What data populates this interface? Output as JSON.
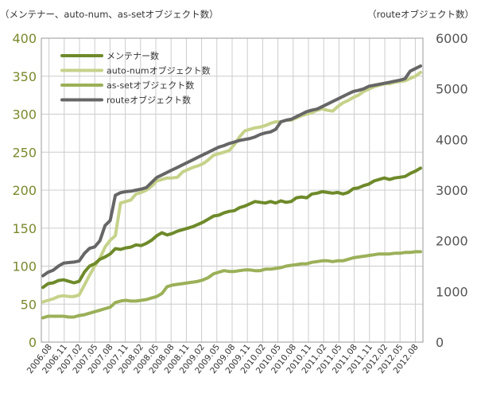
{
  "chart_data": {
    "type": "line",
    "left_axis_title": "（メンテナー、auto-num、as-setオブジェクト数）",
    "right_axis_title": "（routeオブジェクト数）",
    "left_ylim": [
      0,
      400
    ],
    "right_ylim": [
      0,
      6000
    ],
    "left_ticks": [
      "0",
      "50",
      "100",
      "150",
      "200",
      "250",
      "300",
      "350",
      "400"
    ],
    "right_ticks": [
      "0",
      "1000",
      "2000",
      "3000",
      "4000",
      "5000",
      "6000"
    ],
    "x_ticks": [
      "2006.08",
      "2006.11",
      "2007.02",
      "2007.05",
      "2007.08",
      "2007.11",
      "2008.02",
      "2008.05",
      "2008.08",
      "2008.11",
      "2009.02",
      "2009.05",
      "2009.08",
      "2009.11",
      "2010.02",
      "2010.05",
      "2010.08",
      "2010.11",
      "2011.02",
      "2011.05",
      "2011.08",
      "2011.11",
      "2012.02",
      "2012.05",
      "2012.08"
    ],
    "grid": true,
    "legend_position": "top-left",
    "series": [
      {
        "name": "メンテナー数",
        "axis": "left",
        "color": "#6e8a2a",
        "values": [
          72,
          77,
          78,
          81,
          82,
          80,
          78,
          80,
          92,
          100,
          103,
          109,
          112,
          116,
          123,
          122,
          124,
          125,
          128,
          127,
          130,
          134,
          140,
          144,
          141,
          143,
          146,
          148,
          150,
          152,
          155,
          158,
          162,
          166,
          167,
          170,
          172,
          173,
          177,
          179,
          182,
          185,
          184,
          183,
          185,
          183,
          186,
          184,
          185,
          190,
          191,
          190,
          195,
          196,
          198,
          197,
          196,
          197,
          195,
          197,
          202,
          203,
          206,
          208,
          212,
          214,
          216,
          214,
          216,
          217,
          218,
          222,
          225,
          229
        ]
      },
      {
        "name": "auto-numオブジェクト数",
        "axis": "left",
        "color": "#c5d28a",
        "values": [
          53,
          55,
          57,
          60,
          61,
          60,
          60,
          62,
          75,
          88,
          100,
          110,
          125,
          134,
          140,
          183,
          185,
          187,
          195,
          197,
          200,
          205,
          212,
          214,
          216,
          216,
          217,
          224,
          227,
          230,
          232,
          235,
          240,
          246,
          248,
          250,
          252,
          260,
          270,
          278,
          280,
          282,
          283,
          285,
          288,
          290,
          290,
          292,
          292,
          295,
          298,
          300,
          302,
          305,
          307,
          305,
          304,
          310,
          315,
          318,
          322,
          325,
          330,
          333,
          336,
          338,
          340,
          340,
          342,
          343,
          344,
          347,
          350,
          355
        ]
      },
      {
        "name": "as-setオブジェクト数",
        "axis": "left",
        "color": "#9bb058",
        "values": [
          32,
          34,
          34,
          34,
          34,
          33,
          33,
          35,
          36,
          38,
          40,
          42,
          44,
          46,
          52,
          54,
          55,
          54,
          54,
          55,
          56,
          58,
          60,
          64,
          73,
          75,
          76,
          77,
          78,
          79,
          80,
          82,
          85,
          90,
          92,
          94,
          93,
          93,
          94,
          95,
          95,
          94,
          94,
          96,
          96,
          97,
          98,
          100,
          101,
          102,
          103,
          103,
          105,
          106,
          107,
          107,
          106,
          107,
          107,
          109,
          111,
          112,
          113,
          114,
          115,
          116,
          116,
          116,
          117,
          117,
          118,
          118,
          119,
          119
        ]
      },
      {
        "name": "routeオブジェクト数",
        "axis": "right",
        "color": "#666666",
        "values": [
          1310,
          1380,
          1420,
          1500,
          1560,
          1570,
          1580,
          1600,
          1750,
          1850,
          1880,
          2000,
          2300,
          2400,
          2900,
          2950,
          2970,
          2980,
          3000,
          3020,
          3050,
          3150,
          3250,
          3300,
          3350,
          3400,
          3450,
          3500,
          3550,
          3600,
          3650,
          3700,
          3750,
          3800,
          3850,
          3880,
          3920,
          3950,
          3980,
          4000,
          4020,
          4050,
          4100,
          4130,
          4150,
          4200,
          4350,
          4380,
          4400,
          4450,
          4500,
          4550,
          4580,
          4600,
          4650,
          4700,
          4750,
          4800,
          4850,
          4900,
          4950,
          4970,
          5000,
          5050,
          5070,
          5090,
          5110,
          5130,
          5150,
          5170,
          5200,
          5350,
          5400,
          5450
        ]
      }
    ]
  }
}
